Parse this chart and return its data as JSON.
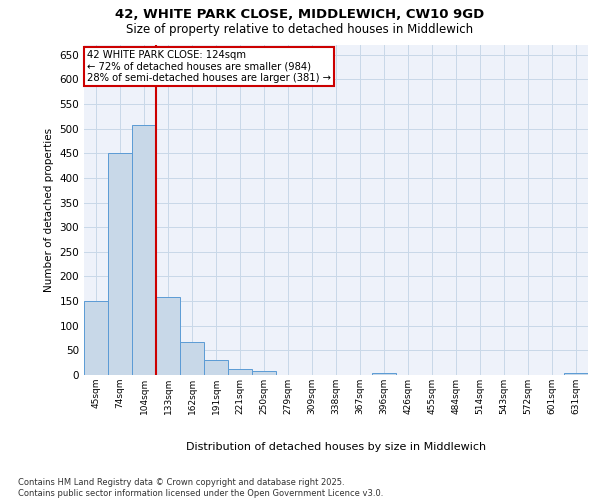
{
  "title_line1": "42, WHITE PARK CLOSE, MIDDLEWICH, CW10 9GD",
  "title_line2": "Size of property relative to detached houses in Middlewich",
  "xlabel": "Distribution of detached houses by size in Middlewich",
  "ylabel": "Number of detached properties",
  "categories": [
    "45sqm",
    "74sqm",
    "104sqm",
    "133sqm",
    "162sqm",
    "191sqm",
    "221sqm",
    "250sqm",
    "279sqm",
    "309sqm",
    "338sqm",
    "367sqm",
    "396sqm",
    "426sqm",
    "455sqm",
    "484sqm",
    "514sqm",
    "543sqm",
    "572sqm",
    "601sqm",
    "631sqm"
  ],
  "values": [
    150,
    450,
    507,
    158,
    67,
    30,
    13,
    8,
    0,
    0,
    0,
    0,
    5,
    0,
    0,
    0,
    0,
    0,
    0,
    0,
    5
  ],
  "bar_color": "#c8d8e8",
  "bar_edge_color": "#5b9bd5",
  "grid_color": "#c8d8e8",
  "background_color": "#eef2fa",
  "vline_x": 2.5,
  "vline_color": "#cc0000",
  "annotation_text": "42 WHITE PARK CLOSE: 124sqm\n← 72% of detached houses are smaller (984)\n28% of semi-detached houses are larger (381) →",
  "annotation_box_color": "#cc0000",
  "footnote": "Contains HM Land Registry data © Crown copyright and database right 2025.\nContains public sector information licensed under the Open Government Licence v3.0.",
  "ylim": [
    0,
    670
  ],
  "yticks": [
    0,
    50,
    100,
    150,
    200,
    250,
    300,
    350,
    400,
    450,
    500,
    550,
    600,
    650
  ]
}
